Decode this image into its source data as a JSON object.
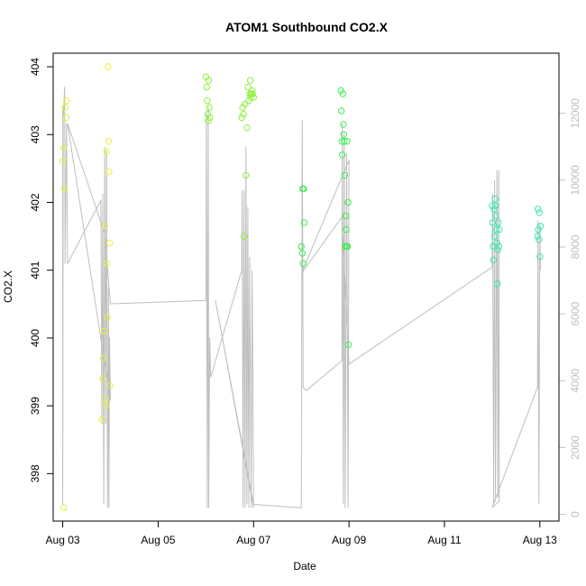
{
  "chart_data": {
    "type": "scatter",
    "title": "ATOM1 Southbound CO2.X",
    "xlabel": "Date",
    "ylabel": "CO2.X",
    "x_ticks": [
      "Aug 03",
      "Aug 05",
      "Aug 07",
      "Aug 09",
      "Aug 11",
      "Aug 13"
    ],
    "x_tick_days": [
      3,
      5,
      7,
      9,
      11,
      13
    ],
    "xlim": [
      2.8,
      13.4
    ],
    "y_ticks": [
      398,
      399,
      400,
      401,
      402,
      403,
      404
    ],
    "ylim": [
      397.3,
      404.2
    ],
    "y2_ticks": [
      0,
      2000,
      4000,
      6000,
      8000,
      10000,
      12000
    ],
    "y2lim": [
      -200,
      13800
    ],
    "grid": false,
    "point_colors": {
      "yellow": "#e6f03c",
      "lime": "#8cf03c",
      "green": "#3cf050",
      "teal": "#3ce6b4"
    },
    "secondary_series_color": "#bebebe",
    "points": [
      {
        "x": 3.0,
        "y": 402.6,
        "c": "yellow"
      },
      {
        "x": 3.02,
        "y": 402.8,
        "c": "yellow"
      },
      {
        "x": 3.03,
        "y": 402.2,
        "c": "yellow"
      },
      {
        "x": 3.05,
        "y": 403.4,
        "c": "yellow"
      },
      {
        "x": 3.07,
        "y": 403.25,
        "c": "yellow"
      },
      {
        "x": 3.08,
        "y": 403.5,
        "c": "yellow"
      },
      {
        "x": 3.02,
        "y": 397.5,
        "c": "yellow"
      },
      {
        "x": 3.82,
        "y": 398.8,
        "c": "yellow"
      },
      {
        "x": 3.84,
        "y": 399.4,
        "c": "yellow"
      },
      {
        "x": 3.85,
        "y": 399.7,
        "c": "yellow"
      },
      {
        "x": 3.87,
        "y": 400.1,
        "c": "yellow"
      },
      {
        "x": 3.88,
        "y": 401.65,
        "c": "yellow"
      },
      {
        "x": 3.9,
        "y": 399.1,
        "c": "yellow"
      },
      {
        "x": 3.91,
        "y": 399.0,
        "c": "yellow"
      },
      {
        "x": 3.92,
        "y": 402.75,
        "c": "yellow"
      },
      {
        "x": 3.93,
        "y": 401.1,
        "c": "yellow"
      },
      {
        "x": 3.94,
        "y": 400.3,
        "c": "yellow"
      },
      {
        "x": 3.95,
        "y": 404.0,
        "c": "yellow"
      },
      {
        "x": 3.96,
        "y": 402.9,
        "c": "yellow"
      },
      {
        "x": 3.97,
        "y": 402.45,
        "c": "yellow"
      },
      {
        "x": 3.98,
        "y": 401.4,
        "c": "yellow"
      },
      {
        "x": 3.99,
        "y": 399.3,
        "c": "yellow"
      },
      {
        "x": 6.0,
        "y": 403.85,
        "c": "lime"
      },
      {
        "x": 6.02,
        "y": 403.7,
        "c": "lime"
      },
      {
        "x": 6.03,
        "y": 403.5,
        "c": "lime"
      },
      {
        "x": 6.04,
        "y": 403.3,
        "c": "lime"
      },
      {
        "x": 6.05,
        "y": 403.2,
        "c": "lime"
      },
      {
        "x": 6.06,
        "y": 403.8,
        "c": "lime"
      },
      {
        "x": 6.07,
        "y": 403.4,
        "c": "lime"
      },
      {
        "x": 6.08,
        "y": 403.25,
        "c": "lime"
      },
      {
        "x": 6.75,
        "y": 403.25,
        "c": "lime"
      },
      {
        "x": 6.77,
        "y": 403.4,
        "c": "lime"
      },
      {
        "x": 6.79,
        "y": 403.3,
        "c": "lime"
      },
      {
        "x": 6.8,
        "y": 401.5,
        "c": "lime"
      },
      {
        "x": 6.82,
        "y": 403.45,
        "c": "lime"
      },
      {
        "x": 6.84,
        "y": 402.4,
        "c": "lime"
      },
      {
        "x": 6.86,
        "y": 403.1,
        "c": "lime"
      },
      {
        "x": 6.88,
        "y": 403.7,
        "c": "lime"
      },
      {
        "x": 6.9,
        "y": 403.5,
        "c": "lime"
      },
      {
        "x": 6.92,
        "y": 403.6,
        "c": "lime"
      },
      {
        "x": 6.93,
        "y": 403.8,
        "c": "lime"
      },
      {
        "x": 6.94,
        "y": 403.55,
        "c": "lime"
      },
      {
        "x": 6.95,
        "y": 403.6,
        "c": "lime"
      },
      {
        "x": 6.97,
        "y": 403.65,
        "c": "lime"
      },
      {
        "x": 6.98,
        "y": 403.6,
        "c": "lime"
      },
      {
        "x": 7.0,
        "y": 403.55,
        "c": "lime"
      },
      {
        "x": 8.0,
        "y": 401.35,
        "c": "green"
      },
      {
        "x": 8.02,
        "y": 401.25,
        "c": "green"
      },
      {
        "x": 8.03,
        "y": 402.2,
        "c": "green"
      },
      {
        "x": 8.04,
        "y": 401.1,
        "c": "green"
      },
      {
        "x": 8.05,
        "y": 402.2,
        "c": "green"
      },
      {
        "x": 8.06,
        "y": 401.7,
        "c": "green"
      },
      {
        "x": 8.83,
        "y": 403.65,
        "c": "green"
      },
      {
        "x": 8.84,
        "y": 403.35,
        "c": "green"
      },
      {
        "x": 8.85,
        "y": 402.9,
        "c": "green"
      },
      {
        "x": 8.86,
        "y": 402.7,
        "c": "green"
      },
      {
        "x": 8.87,
        "y": 403.6,
        "c": "green"
      },
      {
        "x": 8.88,
        "y": 403.15,
        "c": "green"
      },
      {
        "x": 8.89,
        "y": 403.0,
        "c": "green"
      },
      {
        "x": 8.9,
        "y": 402.9,
        "c": "green"
      },
      {
        "x": 8.91,
        "y": 402.4,
        "c": "green"
      },
      {
        "x": 8.92,
        "y": 401.35,
        "c": "green"
      },
      {
        "x": 8.93,
        "y": 401.8,
        "c": "green"
      },
      {
        "x": 8.94,
        "y": 401.6,
        "c": "green"
      },
      {
        "x": 8.95,
        "y": 401.35,
        "c": "green"
      },
      {
        "x": 8.96,
        "y": 402.9,
        "c": "green"
      },
      {
        "x": 8.97,
        "y": 401.35,
        "c": "green"
      },
      {
        "x": 8.98,
        "y": 402.0,
        "c": "green"
      },
      {
        "x": 8.99,
        "y": 399.9,
        "c": "green"
      },
      {
        "x": 12.0,
        "y": 401.95,
        "c": "teal"
      },
      {
        "x": 12.01,
        "y": 401.7,
        "c": "teal"
      },
      {
        "x": 12.02,
        "y": 401.35,
        "c": "teal"
      },
      {
        "x": 12.03,
        "y": 401.15,
        "c": "teal"
      },
      {
        "x": 12.04,
        "y": 401.9,
        "c": "teal"
      },
      {
        "x": 12.05,
        "y": 401.5,
        "c": "teal"
      },
      {
        "x": 12.06,
        "y": 402.05,
        "c": "teal"
      },
      {
        "x": 12.07,
        "y": 401.95,
        "c": "teal"
      },
      {
        "x": 12.08,
        "y": 401.8,
        "c": "teal"
      },
      {
        "x": 12.09,
        "y": 401.6,
        "c": "teal"
      },
      {
        "x": 12.1,
        "y": 401.4,
        "c": "teal"
      },
      {
        "x": 12.11,
        "y": 400.8,
        "c": "teal"
      },
      {
        "x": 12.12,
        "y": 401.3,
        "c": "teal"
      },
      {
        "x": 12.13,
        "y": 401.7,
        "c": "teal"
      },
      {
        "x": 12.14,
        "y": 401.35,
        "c": "teal"
      },
      {
        "x": 12.15,
        "y": 401.6,
        "c": "teal"
      },
      {
        "x": 12.95,
        "y": 401.5,
        "c": "teal"
      },
      {
        "x": 12.96,
        "y": 401.9,
        "c": "teal"
      },
      {
        "x": 12.97,
        "y": 401.6,
        "c": "teal"
      },
      {
        "x": 12.98,
        "y": 401.45,
        "c": "teal"
      },
      {
        "x": 12.99,
        "y": 401.85,
        "c": "teal"
      },
      {
        "x": 13.0,
        "y": 401.2,
        "c": "teal"
      },
      {
        "x": 13.01,
        "y": 401.65,
        "c": "teal"
      }
    ],
    "secondary_line": [
      {
        "x": 3.0,
        "y2": 12200
      },
      {
        "x": 3.0,
        "y2": 300
      },
      {
        "x": 3.01,
        "y2": 11800
      },
      {
        "x": 3.04,
        "y2": 12800
      },
      {
        "x": 3.05,
        "y2": 7500
      },
      {
        "x": 3.08,
        "y2": 11700
      },
      {
        "x": 3.1,
        "y2": 7500
      },
      {
        "x": 3.8,
        "y2": 9400
      },
      {
        "x": 3.82,
        "y2": 2700
      },
      {
        "x": 3.84,
        "y2": 9600
      },
      {
        "x": 3.86,
        "y2": 300
      },
      {
        "x": 3.88,
        "y2": 11000
      },
      {
        "x": 3.9,
        "y2": 2700
      },
      {
        "x": 3.92,
        "y2": 10900
      },
      {
        "x": 3.94,
        "y2": 200
      },
      {
        "x": 3.96,
        "y2": 6800
      },
      {
        "x": 3.97,
        "y2": 200
      },
      {
        "x": 3.98,
        "y2": 5300
      },
      {
        "x": 4.0,
        "y2": 3400
      },
      {
        "x": 3.1,
        "y2": 11700
      },
      {
        "x": 3.88,
        "y2": 8400
      },
      {
        "x": 4.0,
        "y2": 6300
      },
      {
        "x": 6.0,
        "y2": 6400
      },
      {
        "x": 6.01,
        "y2": 12000
      },
      {
        "x": 6.03,
        "y2": 200
      },
      {
        "x": 6.05,
        "y2": 12200
      },
      {
        "x": 6.06,
        "y2": 200
      },
      {
        "x": 6.08,
        "y2": 5300
      },
      {
        "x": 6.1,
        "y2": 4100
      },
      {
        "x": 6.75,
        "y2": 7300
      },
      {
        "x": 6.76,
        "y2": 9700
      },
      {
        "x": 6.78,
        "y2": 200
      },
      {
        "x": 6.8,
        "y2": 9700
      },
      {
        "x": 6.82,
        "y2": 200
      },
      {
        "x": 6.84,
        "y2": 11000
      },
      {
        "x": 6.86,
        "y2": 300
      },
      {
        "x": 6.88,
        "y2": 9200
      },
      {
        "x": 6.9,
        "y2": 200
      },
      {
        "x": 6.92,
        "y2": 7700
      },
      {
        "x": 6.95,
        "y2": 200
      },
      {
        "x": 6.97,
        "y2": 7300
      },
      {
        "x": 7.0,
        "y2": 200
      },
      {
        "x": 6.2,
        "y2": 6400
      },
      {
        "x": 7.0,
        "y2": 300
      },
      {
        "x": 8.0,
        "y2": 200
      },
      {
        "x": 8.02,
        "y2": 11800
      },
      {
        "x": 8.04,
        "y2": 3800
      },
      {
        "x": 8.1,
        "y2": 3700
      },
      {
        "x": 8.85,
        "y2": 4600
      },
      {
        "x": 8.86,
        "y2": 11700
      },
      {
        "x": 8.88,
        "y2": 300
      },
      {
        "x": 8.9,
        "y2": 11400
      },
      {
        "x": 8.92,
        "y2": 200
      },
      {
        "x": 8.95,
        "y2": 10800
      },
      {
        "x": 8.98,
        "y2": 200
      },
      {
        "x": 9.0,
        "y2": 10600
      },
      {
        "x": 8.0,
        "y2": 7200
      },
      {
        "x": 8.85,
        "y2": 8900
      },
      {
        "x": 9.0,
        "y2": 4500
      },
      {
        "x": 12.0,
        "y2": 7400
      },
      {
        "x": 12.01,
        "y2": 9600
      },
      {
        "x": 12.03,
        "y2": 300
      },
      {
        "x": 12.05,
        "y2": 10000
      },
      {
        "x": 12.07,
        "y2": 400
      },
      {
        "x": 12.1,
        "y2": 10300
      },
      {
        "x": 12.12,
        "y2": 500
      },
      {
        "x": 12.14,
        "y2": 10300
      },
      {
        "x": 12.15,
        "y2": 400
      },
      {
        "x": 12.0,
        "y2": 200
      },
      {
        "x": 12.95,
        "y2": 3800
      },
      {
        "x": 12.96,
        "y2": 8800
      },
      {
        "x": 12.98,
        "y2": 300
      },
      {
        "x": 13.0,
        "y2": 8700
      },
      {
        "x": 13.01,
        "y2": 7300
      }
    ]
  }
}
